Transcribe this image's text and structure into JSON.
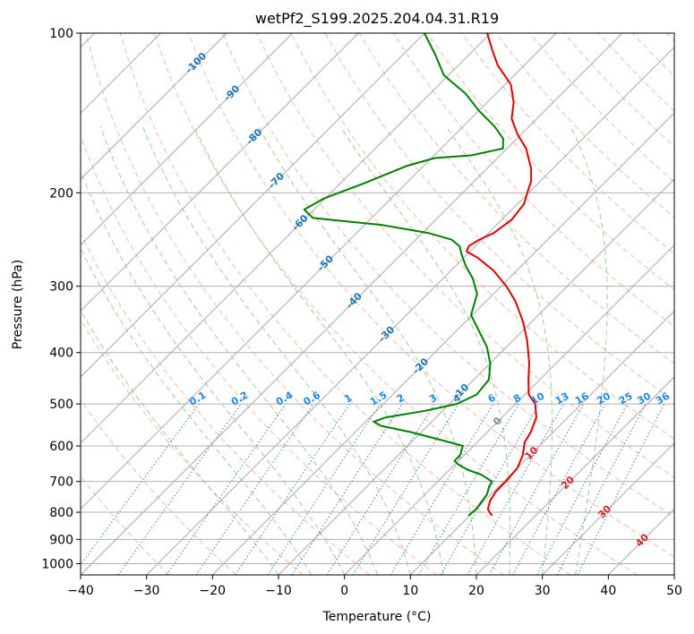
{
  "chart_data": {
    "type": "line",
    "chart_kind": "skew-T log-p diagram",
    "title": "wetPf2_S199.2025.204.04.31.R19",
    "xlabel": "Temperature (°C)",
    "ylabel": "Pressure (hPa)",
    "xlim": [
      -40,
      50
    ],
    "ylim": [
      1050,
      100
    ],
    "y_scale": "log",
    "grid": true,
    "x_ticks": [
      -40,
      -30,
      -20,
      -10,
      0,
      10,
      20,
      30,
      40,
      50
    ],
    "y_ticks": [
      1000,
      900,
      800,
      700,
      600,
      500,
      400,
      300,
      200,
      100
    ],
    "x_tick_labels": [
      "−40",
      "−30",
      "−20",
      "−10",
      "0",
      "10",
      "20",
      "30",
      "40",
      "50"
    ],
    "y_tick_labels": [
      "1000",
      "900",
      "800",
      "700",
      "600",
      "500",
      "400",
      "300",
      "200",
      "100"
    ],
    "colors": {
      "temperature": "#e00000",
      "dewpoint": "#008000",
      "dry_adiabat": "#f4a582",
      "moist_adiabat": "#7fbf7b",
      "mixing_ratio": "#1f77b4",
      "isotherm": "#888888"
    },
    "series": [
      {
        "color": "#e00000",
        "points": [
          {
            "p": 812,
            "t": 13.4
          },
          {
            "p": 790,
            "t": 11.8
          },
          {
            "p": 760,
            "t": 10.8
          },
          {
            "p": 730,
            "t": 10.3
          },
          {
            "p": 700,
            "t": 10.3
          },
          {
            "p": 660,
            "t": 10.0
          },
          {
            "p": 625,
            "t": 8.9
          },
          {
            "p": 590,
            "t": 7.2
          },
          {
            "p": 565,
            "t": 6.6
          },
          {
            "p": 530,
            "t": 5.2
          },
          {
            "p": 500,
            "t": 3.0
          },
          {
            "p": 480,
            "t": 0.6
          },
          {
            "p": 450,
            "t": -1.7
          },
          {
            "p": 420,
            "t": -4.0
          },
          {
            "p": 380,
            "t": -7.8
          },
          {
            "p": 350,
            "t": -11.3
          },
          {
            "p": 320,
            "t": -15.6
          },
          {
            "p": 300,
            "t": -19.2
          },
          {
            "p": 280,
            "t": -23.6
          },
          {
            "p": 265,
            "t": -27.9
          },
          {
            "p": 258,
            "t": -30.5
          },
          {
            "p": 252,
            "t": -31.0
          },
          {
            "p": 245,
            "t": -30.4
          },
          {
            "p": 238,
            "t": -29.2
          },
          {
            "p": 225,
            "t": -28.5
          },
          {
            "p": 210,
            "t": -29.0
          },
          {
            "p": 200,
            "t": -30.2
          },
          {
            "p": 190,
            "t": -31.4
          },
          {
            "p": 180,
            "t": -33.3
          },
          {
            "p": 165,
            "t": -37.1
          },
          {
            "p": 155,
            "t": -40.6
          },
          {
            "p": 145,
            "t": -43.8
          },
          {
            "p": 135,
            "t": -46.0
          },
          {
            "p": 125,
            "t": -49.1
          },
          {
            "p": 115,
            "t": -54.0
          },
          {
            "p": 108,
            "t": -57.0
          },
          {
            "p": 100,
            "t": -60.5
          }
        ]
      },
      {
        "color": "#008000",
        "points": [
          {
            "p": 812,
            "t": 9.8
          },
          {
            "p": 790,
            "t": 10.0
          },
          {
            "p": 765,
            "t": 9.7
          },
          {
            "p": 740,
            "t": 9.4
          },
          {
            "p": 715,
            "t": 8.5
          },
          {
            "p": 700,
            "t": 8.2
          },
          {
            "p": 680,
            "t": 5.6
          },
          {
            "p": 665,
            "t": 2.7
          },
          {
            "p": 650,
            "t": 0.5
          },
          {
            "p": 640,
            "t": -0.6
          },
          {
            "p": 625,
            "t": -0.6
          },
          {
            "p": 600,
            "t": -1.6
          },
          {
            "p": 585,
            "t": -5.7
          },
          {
            "p": 565,
            "t": -11.6
          },
          {
            "p": 550,
            "t": -17.0
          },
          {
            "p": 540,
            "t": -18.8
          },
          {
            "p": 530,
            "t": -17.6
          },
          {
            "p": 515,
            "t": -12.6
          },
          {
            "p": 500,
            "t": -8.9
          },
          {
            "p": 480,
            "t": -7.3
          },
          {
            "p": 450,
            "t": -7.7
          },
          {
            "p": 420,
            "t": -9.9
          },
          {
            "p": 390,
            "t": -13.0
          },
          {
            "p": 360,
            "t": -17.2
          },
          {
            "p": 340,
            "t": -20.2
          },
          {
            "p": 310,
            "t": -22.5
          },
          {
            "p": 290,
            "t": -25.5
          },
          {
            "p": 275,
            "t": -28.4
          },
          {
            "p": 262,
            "t": -30.7
          },
          {
            "p": 252,
            "t": -32.4
          },
          {
            "p": 245,
            "t": -34.6
          },
          {
            "p": 238,
            "t": -39.2
          },
          {
            "p": 230,
            "t": -47.3
          },
          {
            "p": 223,
            "t": -58.9
          },
          {
            "p": 215,
            "t": -61.5
          },
          {
            "p": 205,
            "t": -60.2
          },
          {
            "p": 192,
            "t": -56.4
          },
          {
            "p": 178,
            "t": -52.6
          },
          {
            "p": 172,
            "t": -49.5
          },
          {
            "p": 170,
            "t": -44.4
          },
          {
            "p": 165,
            "t": -40.6
          },
          {
            "p": 158,
            "t": -42.1
          },
          {
            "p": 150,
            "t": -45.2
          },
          {
            "p": 140,
            "t": -50.0
          },
          {
            "p": 130,
            "t": -54.6
          },
          {
            "p": 120,
            "t": -60.7
          },
          {
            "p": 110,
            "t": -65.0
          },
          {
            "p": 100,
            "t": -70.0
          }
        ]
      }
    ],
    "isotherm_labels": [
      {
        "t": -100,
        "p": 114,
        "text": "-100",
        "color": "#1f77b4"
      },
      {
        "t": -90,
        "p": 130,
        "text": "-90",
        "color": "#1f77b4"
      },
      {
        "t": -80,
        "p": 157,
        "text": "-80",
        "color": "#1f77b4"
      },
      {
        "t": -70,
        "p": 190,
        "text": "-70",
        "color": "#1f77b4"
      },
      {
        "t": -60,
        "p": 228,
        "text": "-60",
        "color": "#1f77b4"
      },
      {
        "t": -50,
        "p": 272,
        "text": "-50",
        "color": "#1f77b4"
      },
      {
        "t": -40,
        "p": 320,
        "text": "-40",
        "color": "#1f77b4"
      },
      {
        "t": -30,
        "p": 370,
        "text": "-30",
        "color": "#1f77b4"
      },
      {
        "t": -20,
        "p": 425,
        "text": "-20",
        "color": "#1f77b4"
      },
      {
        "t": -10,
        "p": 475,
        "text": "-10",
        "color": "#1f77b4"
      },
      {
        "t": 0,
        "p": 540,
        "text": "0",
        "color": "#888888"
      },
      {
        "t": 10,
        "p": 620,
        "text": "10",
        "color": "#d62728"
      },
      {
        "t": 20,
        "p": 705,
        "text": "20",
        "color": "#d62728"
      },
      {
        "t": 30,
        "p": 800,
        "text": "30",
        "color": "#d62728"
      },
      {
        "t": 40,
        "p": 905,
        "text": "40",
        "color": "#d62728"
      }
    ],
    "mixing_ratio_labels": [
      "0.1",
      "0.2",
      "0.4",
      "0.6",
      "1",
      "1.5",
      "2",
      "3",
      "4",
      "6",
      "8",
      "10",
      "13",
      "16",
      "20",
      "25",
      "30",
      "36"
    ]
  }
}
